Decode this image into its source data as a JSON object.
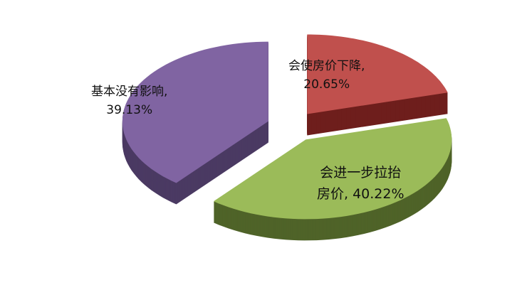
{
  "chart_data": {
    "type": "pie",
    "style": "3d-exploded",
    "slices": [
      {
        "label": "会使房价下降",
        "value": 20.65,
        "text_line1": "会使房价下降,",
        "text_line2": "20.65%",
        "color": "#c0504d",
        "side_color": "#6e1e1c"
      },
      {
        "label": "会进一步拉抬房价",
        "value": 40.22,
        "text_line1": "会进一步拉抬",
        "text_line2": "房价, 40.22%",
        "color": "#9bbb59",
        "side_color": "#4f6328"
      },
      {
        "label": "基本没有影响",
        "value": 39.13,
        "text_line1": "基本没有影响,",
        "text_line2": "39.13%",
        "color": "#8064a2",
        "side_color": "#4b3a63"
      }
    ]
  }
}
